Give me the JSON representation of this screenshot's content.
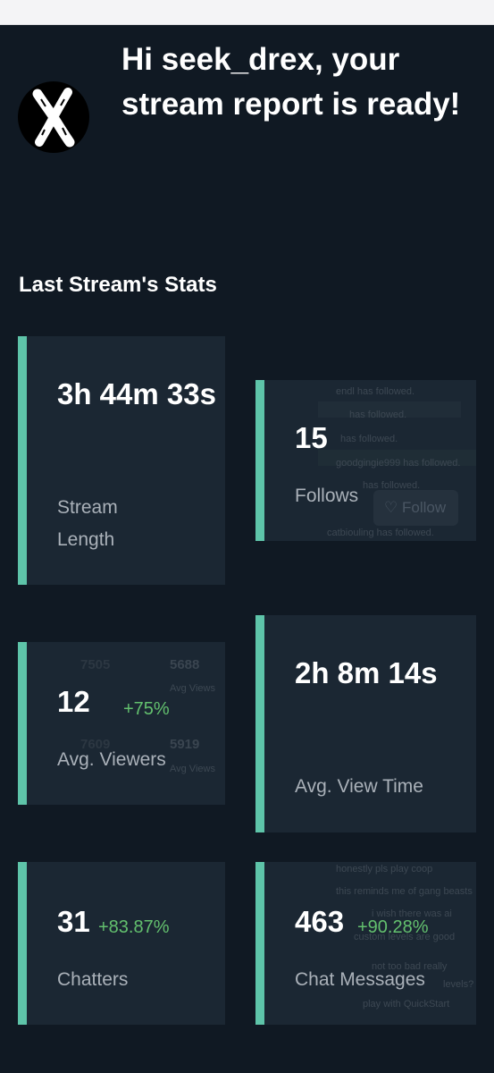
{
  "header": {
    "greeting": "Hi seek_drex, your stream report is ready!",
    "avatar_icon": "x-logo-icon"
  },
  "section": {
    "title": "Last Stream's Stats"
  },
  "stats": {
    "stream_length": {
      "value": "3h 44m 33s",
      "label": "Stream Length"
    },
    "follows": {
      "value": "15",
      "label": "Follows"
    },
    "avg_viewers": {
      "value": "12",
      "change": "+75%",
      "label": "Avg. Viewers"
    },
    "avg_view_time": {
      "value": "2h 8m 14s",
      "label": "Avg. View Time"
    },
    "chatters": {
      "value": "31",
      "change": "+83.87%",
      "label": "Chatters"
    },
    "chat_messages": {
      "value": "463",
      "change": "+90.28%",
      "label": "Chat Messages"
    }
  },
  "background_art": {
    "follows_lines": [
      "endl has followed.",
      "has followed.",
      "has followed.",
      "goodgingie999 has followed.",
      "has followed.",
      "catbiouling has followed."
    ],
    "follow_button": "Follow",
    "viewers_numbers": [
      "7505",
      "5688",
      "7609",
      "5919"
    ],
    "viewers_labels": [
      "Avg Views",
      "Avg Views"
    ],
    "chat_lines": [
      "honestly pls play coop",
      "this reminds me of gang beasts",
      "i wish there was ai",
      "custom levels are good",
      "not too bad really",
      "levels?",
      "play with QuickStart"
    ]
  },
  "colors": {
    "background": "#101923",
    "card": "#1b2733",
    "accent": "#5ec4a9",
    "positive": "#63c06e"
  }
}
